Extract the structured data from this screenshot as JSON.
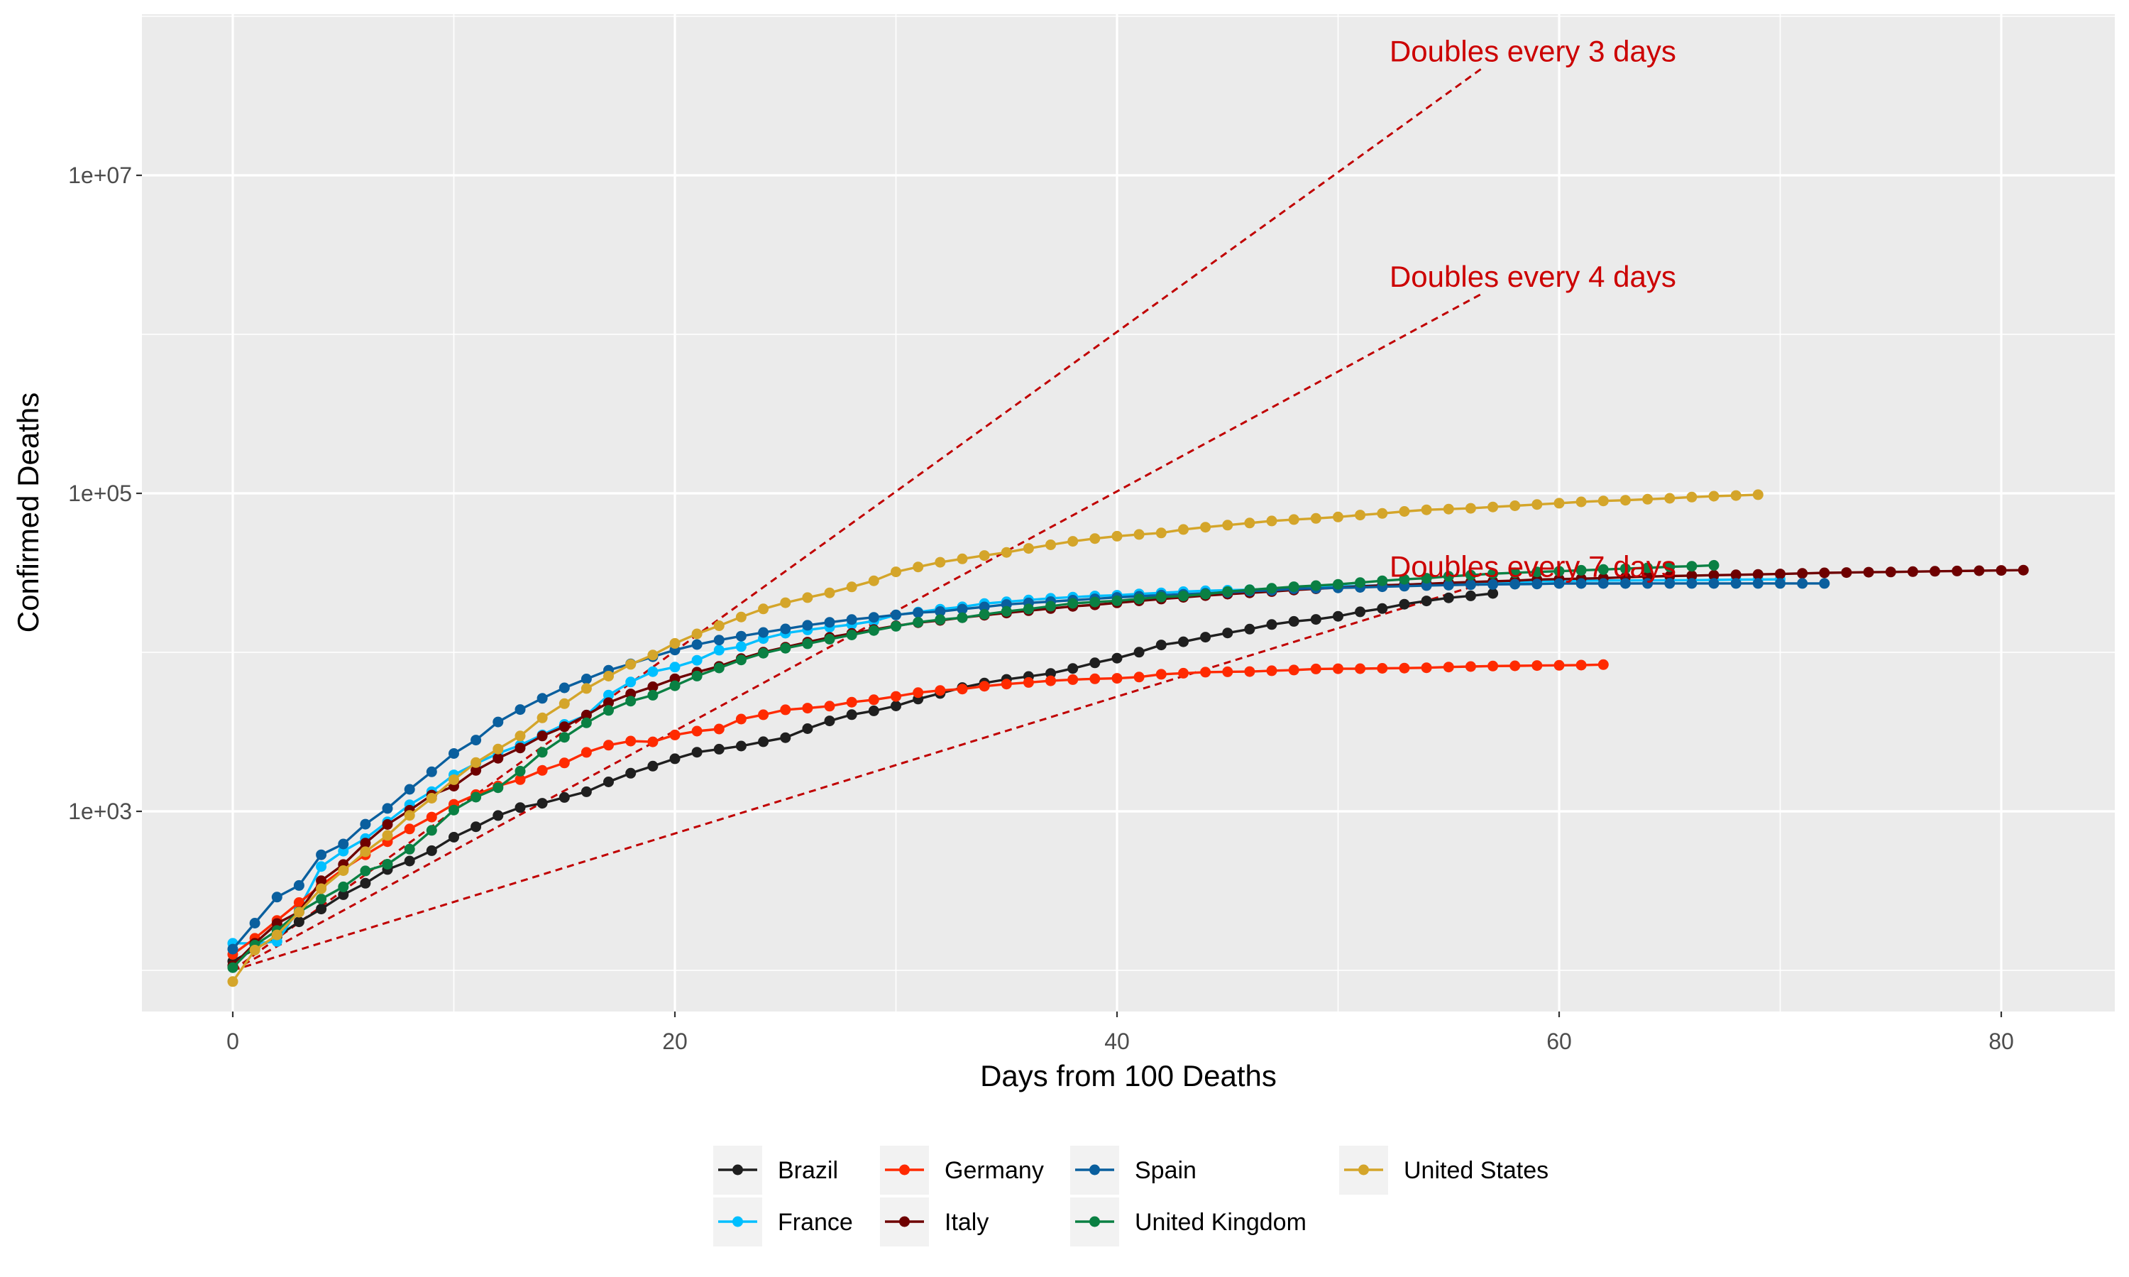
{
  "chart_data": {
    "type": "line",
    "title": "",
    "xlabel": "Days from 100 Deaths",
    "ylabel": "Confirmed Deaths",
    "xlim": [
      -4,
      85.5
    ],
    "ylim": [
      50,
      700000000
    ],
    "yscale": "log10",
    "grid": true,
    "legend_position": "bottom",
    "x_ticks": [
      0,
      20,
      40,
      60,
      80
    ],
    "x_tick_labels": [
      "0",
      "20",
      "40",
      "60",
      "80"
    ],
    "y_ticks": [
      1000,
      100000,
      10000000
    ],
    "y_tick_labels": [
      "1e+03",
      "1e+05",
      "1e+07"
    ],
    "y_minor_ticks": [
      100,
      10000,
      1000000,
      100000000
    ],
    "colors": {
      "panel_background": "#EBEBEB",
      "grid": "#FFFFFF",
      "reference_line": "#C00000",
      "annotation": "#CC0000"
    },
    "series": [
      {
        "name": "Brazil",
        "color": "#1F1F1F",
        "x": [
          0,
          1,
          2,
          3,
          4,
          5,
          6,
          7,
          8,
          9,
          10,
          11,
          12,
          13,
          14,
          15,
          16,
          17,
          18,
          19,
          20,
          21,
          22,
          23,
          24,
          25,
          26,
          27,
          28,
          29,
          30,
          31,
          32,
          33,
          34,
          35,
          36,
          37,
          38,
          39,
          40,
          41,
          42,
          43,
          44,
          45,
          46,
          47,
          48,
          49,
          50,
          51,
          52,
          53,
          54,
          55,
          56,
          57
        ],
        "y": [
          114,
          136,
          163,
          202,
          243,
          299,
          353,
          431,
          487,
          566,
          688,
          800,
          941,
          1056,
          1124,
          1223,
          1328,
          1532,
          1736,
          1924,
          2141,
          2354,
          2462,
          2575,
          2741,
          2906,
          3313,
          3704,
          4057,
          4286,
          4603,
          5083,
          5513,
          6006,
          6412,
          6761,
          7051,
          7367,
          7921,
          8588,
          9190,
          10017,
          11123,
          11653,
          12461,
          13240,
          13999,
          14962,
          15662,
          16118,
          16853,
          17983,
          18859,
          20082,
          21048,
          22013,
          22666,
          23473
        ]
      },
      {
        "name": "France",
        "color": "#00BFFF",
        "x": [
          0,
          1,
          2,
          3,
          4,
          5,
          6,
          7,
          8,
          9,
          10,
          11,
          12,
          13,
          14,
          15,
          16,
          17,
          18,
          19,
          20,
          21,
          22,
          23,
          24,
          25,
          26,
          27,
          28,
          29,
          30,
          31,
          32,
          33,
          34,
          35,
          36,
          37,
          38,
          39,
          40,
          41,
          42,
          43,
          44,
          45,
          46,
          47,
          48,
          49,
          50,
          51,
          52,
          53,
          54,
          55,
          56,
          57,
          58,
          59,
          60,
          61,
          62,
          63,
          64,
          65,
          66,
          67,
          68,
          69,
          70
        ],
        "y": [
          148,
          148,
          152,
          243,
          450,
          562,
          674,
          860,
          1100,
          1331,
          1696,
          1995,
          2314,
          2606,
          3024,
          3523,
          4032,
          5387,
          6507,
          7560,
          8078,
          8911,
          10328,
          10869,
          12210,
          13197,
          13832,
          14393,
          14967,
          15729,
          17167,
          17920,
          18681,
          19323,
          20265,
          20796,
          21340,
          21856,
          22245,
          22614,
          22856,
          23293,
          23660,
          24087,
          24376,
          24594,
          24760,
          25201,
          25531,
          25809,
          25987,
          26230,
          26380,
          26643,
          26991,
          27074,
          27425,
          27529,
          27625,
          28022,
          28108,
          28215,
          28289,
          28332,
          28367,
          28417,
          28460,
          28530,
          28665,
          28717,
          28771
        ]
      },
      {
        "name": "Germany",
        "color": "#FF2A00",
        "x": [
          0,
          1,
          2,
          3,
          4,
          5,
          6,
          7,
          8,
          9,
          10,
          11,
          12,
          13,
          14,
          15,
          16,
          17,
          18,
          19,
          20,
          21,
          22,
          23,
          24,
          25,
          26,
          27,
          28,
          29,
          30,
          31,
          32,
          33,
          34,
          35,
          36,
          37,
          38,
          39,
          40,
          41,
          42,
          43,
          44,
          45,
          46,
          47,
          48,
          49,
          50,
          51,
          52,
          53,
          54,
          55,
          56,
          57,
          58,
          59,
          60,
          61,
          62
        ],
        "y": [
          126,
          159,
          206,
          267,
          342,
          433,
          533,
          645,
          775,
          920,
          1107,
          1275,
          1444,
          1584,
          1810,
          2016,
          2349,
          2607,
          2767,
          2736,
          3022,
          3194,
          3294,
          3804,
          4052,
          4352,
          4459,
          4586,
          4862,
          5033,
          5279,
          5575,
          5760,
          5877,
          6126,
          6314,
          6467,
          6623,
          6736,
          6812,
          6866,
          6993,
          7275,
          7392,
          7510,
          7549,
          7569,
          7661,
          7738,
          7861,
          7884,
          7897,
          7938,
          7962,
          8003,
          8081,
          8144,
          8203,
          8228,
          8261,
          8283,
          8309,
          8372
        ]
      },
      {
        "name": "Italy",
        "color": "#6E0000",
        "x": [
          0,
          1,
          2,
          3,
          4,
          5,
          6,
          7,
          8,
          9,
          10,
          11,
          12,
          13,
          14,
          15,
          16,
          17,
          18,
          19,
          20,
          21,
          22,
          23,
          24,
          25,
          26,
          27,
          28,
          29,
          30,
          31,
          32,
          33,
          34,
          35,
          36,
          37,
          38,
          39,
          40,
          41,
          42,
          43,
          44,
          45,
          46,
          47,
          48,
          49,
          50,
          51,
          52,
          53,
          54,
          55,
          56,
          57,
          58,
          59,
          60,
          61,
          62,
          63,
          64,
          65,
          66,
          67,
          68,
          69,
          70,
          71,
          72,
          73,
          74,
          75,
          76,
          77,
          78,
          79,
          80,
          81
        ],
        "y": [
          107,
          148,
          197,
          233,
          366,
          463,
          631,
          827,
          1016,
          1266,
          1441,
          1809,
          2158,
          2503,
          2978,
          3405,
          4032,
          4825,
          5476,
          6077,
          6820,
          7503,
          8165,
          9134,
          10023,
          10779,
          11591,
          12428,
          13155,
          13915,
          14681,
          15362,
          15887,
          16523,
          17127,
          17669,
          18279,
          18849,
          19468,
          19899,
          20465,
          21067,
          21645,
          22170,
          22745,
          23227,
          23660,
          24114,
          24648,
          25085,
          25549,
          25969,
          26384,
          26644,
          26977,
          27359,
          27682,
          27967,
          28236,
          28710,
          28884,
          29079,
          29315,
          29684,
          29958,
          30201,
          30395,
          30560,
          30739,
          30911,
          31106,
          31368,
          31610,
          31763,
          31908,
          32007,
          32169,
          32330,
          32486,
          32616,
          32735,
          32877
        ]
      },
      {
        "name": "Spain",
        "color": "#0A5F9E",
        "x": [
          0,
          1,
          2,
          3,
          4,
          5,
          6,
          7,
          8,
          9,
          10,
          11,
          12,
          13,
          14,
          15,
          16,
          17,
          18,
          19,
          20,
          21,
          22,
          23,
          24,
          25,
          26,
          27,
          28,
          29,
          30,
          31,
          32,
          33,
          34,
          35,
          36,
          37,
          38,
          39,
          40,
          41,
          42,
          43,
          44,
          45,
          46,
          47,
          48,
          49,
          50,
          51,
          52,
          53,
          54,
          55,
          56,
          57,
          58,
          59,
          60,
          61,
          62,
          63,
          64,
          65,
          66,
          67,
          68,
          69,
          70,
          71,
          72
        ],
        "y": [
          136,
          198,
          289,
          342,
          533,
          623,
          830,
          1043,
          1375,
          1772,
          2311,
          2808,
          3647,
          4365,
          5138,
          5982,
          6803,
          7716,
          8464,
          9387,
          10348,
          11198,
          11947,
          12641,
          13341,
          14045,
          14792,
          15447,
          16081,
          16606,
          17209,
          17756,
          18056,
          18708,
          19315,
          20002,
          20453,
          20852,
          21282,
          21717,
          22157,
          22524,
          22902,
          23190,
          23521,
          23822,
          24275,
          24543,
          25100,
          25264,
          25428,
          25613,
          25857,
          26070,
          26299,
          26478,
          26621,
          26744,
          26834,
          26920,
          27104,
          27117,
          27117,
          27117,
          27119,
          27121,
          27125,
          27127,
          27127,
          27127,
          27127,
          27136,
          27136
        ]
      },
      {
        "name": "United Kingdom",
        "color": "#0A8043",
        "x": [
          0,
          1,
          2,
          3,
          4,
          5,
          6,
          7,
          8,
          9,
          10,
          11,
          12,
          13,
          14,
          15,
          16,
          17,
          18,
          19,
          20,
          21,
          22,
          23,
          24,
          25,
          26,
          27,
          28,
          29,
          30,
          31,
          32,
          33,
          34,
          35,
          36,
          37,
          38,
          39,
          40,
          41,
          42,
          43,
          44,
          45,
          46,
          47,
          48,
          49,
          50,
          51,
          52,
          53,
          54,
          55,
          56,
          57,
          58,
          59,
          60,
          61,
          62,
          63,
          64,
          65,
          66,
          67
        ],
        "y": [
          104,
          144,
          178,
          233,
          281,
          335,
          422,
          465,
          578,
          759,
          1019,
          1228,
          1408,
          1789,
          2352,
          2921,
          3605,
          4313,
          4934,
          5373,
          6159,
          7097,
          7978,
          8958,
          9875,
          10612,
          11329,
          12107,
          12868,
          13729,
          14576,
          15464,
          16060,
          16509,
          17337,
          18100,
          18738,
          19506,
          20319,
          20732,
          21092,
          21678,
          22271,
          22614,
          23231,
          24096,
          24729,
          25279,
          25847,
          26271,
          26771,
          27460,
          28193,
          28809,
          29256,
          30076,
          30615,
          31241,
          31662,
          32034,
          32375,
          32807,
          33200,
          33614,
          33998,
          34543,
          34796,
          35263
        ]
      },
      {
        "name": "United States",
        "color": "#D4A52A",
        "x": [
          0,
          1,
          2,
          3,
          4,
          5,
          6,
          7,
          8,
          9,
          10,
          11,
          12,
          13,
          14,
          15,
          16,
          17,
          18,
          19,
          20,
          21,
          22,
          23,
          24,
          25,
          26,
          27,
          28,
          29,
          30,
          31,
          32,
          33,
          34,
          35,
          36,
          37,
          38,
          39,
          40,
          41,
          42,
          43,
          44,
          45,
          46,
          47,
          48,
          49,
          50,
          51,
          52,
          53,
          54,
          55,
          56,
          57,
          58,
          59,
          60,
          61,
          62,
          63,
          64,
          65,
          66,
          67,
          68,
          69
        ],
        "y": [
          85,
          134,
          167,
          232,
          326,
          424,
          557,
          706,
          943,
          1209,
          1581,
          2026,
          2467,
          2978,
          3873,
          4757,
          5926,
          7087,
          8407,
          9619,
          11380,
          13065,
          14699,
          16686,
          18761,
          20506,
          22085,
          23656,
          25808,
          28186,
          32092,
          34424,
          36849,
          38714,
          40637,
          42531,
          45053,
          47445,
          49911,
          51943,
          53750,
          55136,
          56364,
          59256,
          61263,
          63124,
          65092,
          67055,
          68459,
          69601,
          70979,
          73039,
          74794,
          76938,
          78809,
          79582,
          80542,
          82105,
          83562,
          85135,
          86682,
          88436,
          89559,
          90536,
          91845,
          93066,
          94661,
          95987,
          96901,
          98107
        ]
      }
    ],
    "reference_lines": [
      {
        "label": "Doubles every 3 days",
        "doubling_days": 3,
        "x": [
          0,
          56.5
        ],
        "y": [
          100,
          47000000
        ]
      },
      {
        "label": "Doubles every 4 days",
        "doubling_days": 4,
        "x": [
          0,
          56.5
        ],
        "y": [
          100,
          1800000
        ]
      },
      {
        "label": "Doubles every 7 days",
        "doubling_days": 7,
        "x": [
          0,
          56.5
        ],
        "y": [
          100,
          27000
        ]
      }
    ]
  }
}
